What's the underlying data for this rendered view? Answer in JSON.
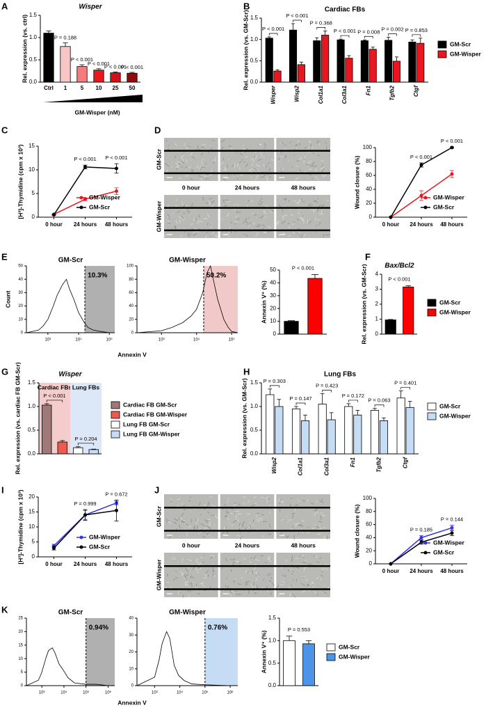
{
  "chart_data": [
    {
      "type": "bar",
      "panel": "A",
      "title": "Wisper",
      "ylabel": "Rel. expression (vs. ctrl)",
      "xlabel": "GM-Wisper (nM)",
      "categories": [
        "Ctrl",
        "1",
        "5",
        "10",
        "25",
        "50"
      ],
      "values": [
        1.1,
        0.8,
        0.35,
        0.27,
        0.21,
        0.2
      ],
      "errors": [
        0.05,
        0.08,
        0.04,
        0.03,
        0.02,
        0.02
      ],
      "colors": [
        "#000000",
        "#f9c6c6",
        "#f47c7c",
        "#e8171f",
        "#d0111a",
        "#8e0c0c"
      ],
      "annotations": [
        null,
        "P = 0.188",
        "P < 0.001",
        "P < 0.001",
        "P < 0.001",
        "P < 0.001"
      ],
      "ylim": [
        0,
        1.5
      ],
      "yticks": [
        {
          "value": 0,
          "label": "0.0"
        },
        {
          "value": 0.5,
          "label": "0.5"
        },
        {
          "value": 1,
          "label": "1.0"
        },
        {
          "value": 1.5,
          "label": "1.5"
        }
      ]
    },
    {
      "type": "grouped_bar",
      "panel": "B",
      "title": "Cardiac FBs",
      "ylabel": "Rel. expression (vs. GM-Scr)",
      "categories": [
        "Wisper",
        "Wisp2",
        "Col1a1",
        "Col3a1",
        "Fn1",
        "Tgfb2",
        "Ctgf"
      ],
      "series": [
        {
          "name": "GM-Scr",
          "color": "#000000",
          "values": [
            1.03,
            1.22,
            0.97,
            0.99,
            0.97,
            0.98,
            0.94
          ],
          "errors": [
            0.03,
            0.15,
            0.07,
            0.02,
            0.02,
            0.07,
            0.05
          ]
        },
        {
          "name": "GM-Wisper",
          "color": "#e8171f",
          "values": [
            0.26,
            0.41,
            1.1,
            0.56,
            0.77,
            0.49,
            0.91
          ],
          "errors": [
            0.03,
            0.06,
            0.1,
            0.06,
            0.05,
            0.1,
            0.12
          ]
        }
      ],
      "annotations": [
        "P < 0.001",
        "P < 0.001",
        "P = 0.368",
        "P < 0.001",
        "P = 0.008",
        "P = 0.002",
        "P = 0.853"
      ],
      "ylim": [
        0,
        1.5
      ],
      "yticks": [
        {
          "value": 0,
          "label": "0.0"
        },
        {
          "value": 0.5,
          "label": "0.5"
        },
        {
          "value": 1,
          "label": "1.0"
        },
        {
          "value": 1.5,
          "label": "1.5"
        }
      ],
      "legend": "right"
    },
    {
      "type": "line",
      "panel": "C",
      "ylabel": "[H³]-Thymidine (cpm x 10³)",
      "categories": [
        "0 hour",
        "24 hours",
        "48 hours"
      ],
      "series": [
        {
          "name": "GM-Wisper",
          "color": "#e8171f",
          "values": [
            0.6,
            3.8,
            5.5
          ],
          "errors": [
            0.1,
            0.3,
            0.7
          ]
        },
        {
          "name": "GM-Scr",
          "color": "#000000",
          "values": [
            0.5,
            10.6,
            10.3
          ],
          "errors": [
            0.1,
            0.4,
            1.0
          ]
        }
      ],
      "annotations": [
        null,
        "P < 0.001",
        "P < 0.001"
      ],
      "ylim": [
        0,
        15
      ],
      "yticks": [
        0,
        5,
        10,
        15
      ],
      "legend": "lower right"
    },
    {
      "type": "image",
      "panel": "D",
      "row_labels": [
        "GM-Scr",
        "GM-Wisper"
      ],
      "col_labels": [
        "0 hour",
        "24 hours",
        "48 hours"
      ]
    },
    {
      "type": "line",
      "ylabel": "Wound closure (%)",
      "categories": [
        "0 hour",
        "24 hours",
        "48 hours"
      ],
      "series": [
        {
          "name": "GM-Wisper",
          "color": "#e8171f",
          "values": [
            0,
            31,
            62
          ],
          "errors": [
            0,
            7,
            5
          ]
        },
        {
          "name": "GM-Scr",
          "color": "#000000",
          "values": [
            0,
            75,
            100
          ],
          "errors": [
            0,
            3,
            1
          ]
        }
      ],
      "annotations": [
        null,
        "P < 0.001",
        "P < 0.001"
      ],
      "ylim": [
        0,
        100
      ],
      "yticks": [
        0,
        20,
        40,
        60,
        80,
        100
      ],
      "legend": "lower right"
    },
    {
      "type": "flow",
      "panel": "E",
      "title": "GM-Scr",
      "ylabel": "Count",
      "xlabel": "Annexin V",
      "log_x": true,
      "x": [
        200,
        500,
        700,
        1000,
        1500,
        2000,
        3000,
        4000,
        5000,
        7000,
        10000,
        15000,
        20000,
        30000,
        50000,
        100000
      ],
      "values": [
        0,
        2,
        5,
        10,
        20,
        28,
        36,
        40,
        33,
        25,
        15,
        8,
        4,
        2,
        1,
        0
      ],
      "xlim": [
        200,
        150000
      ],
      "xticks": [
        {
          "value": 1000,
          "label": "10³"
        },
        {
          "value": 10000,
          "label": "10⁴"
        },
        {
          "value": 100000,
          "label": "10⁵"
        }
      ],
      "ylim": [
        0,
        50
      ],
      "yticks": [
        0,
        10,
        20,
        30,
        40,
        50
      ],
      "gate": [
        16000,
        150000
      ],
      "gate_color": "#b0b0b0",
      "gate_label": "10.3%"
    },
    {
      "type": "flow",
      "title": "GM-Wisper",
      "log_x": true,
      "x": [
        200,
        1000,
        2000,
        4000,
        7000,
        10000,
        15000,
        20000,
        25000,
        30000,
        40000,
        60000,
        80000,
        100000,
        150000
      ],
      "values": [
        0,
        3,
        8,
        15,
        25,
        35,
        60,
        90,
        100,
        80,
        50,
        20,
        8,
        2,
        0
      ],
      "xlim": [
        200,
        150000
      ],
      "xticks": [
        {
          "value": 1000,
          "label": "10³"
        },
        {
          "value": 10000,
          "label": "10⁴"
        },
        {
          "value": 100000,
          "label": "10⁵"
        }
      ],
      "ylim": [
        0,
        100
      ],
      "yticks": [
        0,
        20,
        40,
        60,
        80,
        100
      ],
      "gate": [
        16000,
        150000
      ],
      "gate_color": "#f2c9c9",
      "gate_label": "50.2%"
    },
    {
      "type": "bar",
      "ylabel": "Annexin V⁺ (%)",
      "values": [
        10,
        43.5
      ],
      "errors": [
        0.5,
        3
      ],
      "colors": [
        "#000000",
        "#ff0000"
      ],
      "annotation": "P < 0.001",
      "ylim": [
        0,
        50
      ],
      "yticks": [
        0,
        10,
        20,
        30,
        40,
        50
      ]
    },
    {
      "type": "bar",
      "panel": "F",
      "title": "Bax/Bcl2",
      "ylabel": "Rel. expression (vs. GM-Scr)",
      "series": [
        {
          "name": "GM-Scr",
          "color": "#000000",
          "values": [
            0.95
          ],
          "errors": [
            0.03
          ]
        },
        {
          "name": "GM-Wisper",
          "color": "#ff0000",
          "values": [
            3.15
          ],
          "errors": [
            0.08
          ]
        }
      ],
      "annotation": "P < 0.001",
      "ylim": [
        0,
        4
      ],
      "yticks": [
        0,
        1,
        2,
        3,
        4
      ],
      "legend": "right"
    },
    {
      "type": "bar",
      "panel": "G",
      "title": "Wisper",
      "ylabel": "Rel. expression (vs. cardiac FB GM-Scr)",
      "series": [
        {
          "name": "Cardiac FB GM-Scr",
          "color": "#a07878",
          "values": [
            1.03
          ],
          "errors": [
            0.03
          ]
        },
        {
          "name": "Cardiac FB GM-Wisper",
          "color": "#ee5a50",
          "values": [
            0.25
          ],
          "errors": [
            0.03
          ]
        },
        {
          "name": "Lung FB GM-Scr",
          "color": "#ffffff",
          "values": [
            0.13
          ],
          "errors": [
            0.02
          ]
        },
        {
          "name": "Lung FB GM-Wisper",
          "color": "#c6dcf5",
          "values": [
            0.09
          ],
          "errors": [
            0.01
          ]
        }
      ],
      "regions": [
        {
          "label": "Cardiac FBs",
          "color": "#f4cccc"
        },
        {
          "label": "Lung FBs",
          "color": "#dce8f7"
        }
      ],
      "annotations": [
        null,
        "P < 0.001",
        null,
        "P = 0.204"
      ],
      "ylim": [
        0,
        1.5
      ],
      "yticks": [
        {
          "value": 0,
          "label": "0.0"
        },
        {
          "value": 0.5,
          "label": "0.5"
        },
        {
          "value": 1,
          "label": "1.0"
        },
        {
          "value": 1.5,
          "label": "1.5"
        }
      ],
      "legend": "right"
    },
    {
      "type": "grouped_bar",
      "panel": "H",
      "title": "Lung FBs",
      "ylabel": "Rel. expression (vs. GM-Scr)",
      "categories": [
        "Wisp2",
        "Col1a1",
        "Col3a1",
        "Fn1",
        "Tgfb2",
        "Ctgf"
      ],
      "series": [
        {
          "name": "GM-Scr",
          "color": "#ffffff",
          "values": [
            1.25,
            0.95,
            1.05,
            1.0,
            0.92,
            1.18
          ],
          "errors": [
            0.12,
            0.05,
            0.22,
            0.06,
            0.04,
            0.15
          ]
        },
        {
          "name": "GM-Wisper",
          "color": "#c6dcf5",
          "values": [
            1.0,
            0.7,
            0.72,
            0.82,
            0.7,
            0.98
          ],
          "errors": [
            0.15,
            0.12,
            0.15,
            0.1,
            0.06,
            0.13
          ]
        }
      ],
      "annotations": [
        "P = 0.303",
        "P = 0.147",
        "P = 0.423",
        "P = 0.172",
        "P = 0.063",
        "P = 0.401"
      ],
      "ylim": [
        0,
        1.5
      ],
      "yticks": [
        {
          "value": 0,
          "label": "0.0"
        },
        {
          "value": 0.5,
          "label": "0.5"
        },
        {
          "value": 1,
          "label": "1.0"
        },
        {
          "value": 1.5,
          "label": "1.5"
        }
      ],
      "legend": "right"
    },
    {
      "type": "line",
      "panel": "I",
      "ylabel": "[H³]-Thymidine (cpm x 10³)",
      "categories": [
        "0 hour",
        "24 hours",
        "48 hours"
      ],
      "series": [
        {
          "name": "GM-Wisper",
          "color": "#3333e6",
          "values": [
            3.7,
            14,
            18
          ],
          "errors": [
            0.5,
            1.5,
            0.6
          ]
        },
        {
          "name": "GM-Scr",
          "color": "#000000",
          "values": [
            2.9,
            14,
            15.5
          ],
          "errors": [
            0.6,
            1.8,
            3.5
          ]
        }
      ],
      "annotations": [
        null,
        "P = 0.999",
        "P = 0.672"
      ],
      "ylim": [
        0,
        20
      ],
      "yticks": [
        0,
        5,
        10,
        15,
        20
      ],
      "legend": "lower right"
    },
    {
      "type": "image",
      "panel": "J",
      "row_labels": [
        "GM-Scr",
        "GM-Wisper"
      ],
      "col_labels": [
        "0 hour",
        "24 hours",
        "48 hours"
      ]
    },
    {
      "type": "line",
      "ylabel": "Wound closure (%)",
      "categories": [
        "0 hour",
        "24 hours",
        "48 hours"
      ],
      "series": [
        {
          "name": "GM-Wisper",
          "color": "#3333e6",
          "values": [
            0,
            40,
            55
          ],
          "errors": [
            0,
            3,
            4
          ]
        },
        {
          "name": "GM-Scr",
          "color": "#000000",
          "values": [
            0,
            33,
            47
          ],
          "errors": [
            0,
            3,
            4
          ]
        }
      ],
      "annotations": [
        null,
        "P = 0.185",
        "P = 0.144"
      ],
      "ylim": [
        0,
        100
      ],
      "yticks": [
        0,
        20,
        40,
        60,
        80,
        100
      ],
      "legend": "lower right"
    },
    {
      "type": "flow",
      "panel": "K",
      "title": "GM-Scr",
      "xlabel": "Annexin V",
      "log_x": true,
      "x": [
        200,
        700,
        1000,
        1500,
        2000,
        3000,
        4000,
        6000,
        9000,
        15000,
        30000,
        100000,
        300000,
        1000000
      ],
      "values": [
        0,
        2,
        5,
        10,
        13,
        14,
        12,
        8,
        6,
        3,
        1,
        0.5,
        0.5,
        0
      ],
      "xlim": [
        200,
        2000000
      ],
      "xticks": [
        {
          "value": 1000,
          "label": "10³"
        },
        {
          "value": 10000,
          "label": "10⁴"
        },
        {
          "value": 100000,
          "label": "10⁵"
        },
        {
          "value": 1000000,
          "label": "10⁶"
        }
      ],
      "ylim": [
        0,
        25
      ],
      "yticks": [
        0,
        5,
        10,
        15,
        20,
        25
      ],
      "gate": [
        100000,
        2000000
      ],
      "gate_color": "#b0b0b0",
      "gate_label": "0.94%"
    },
    {
      "type": "flow",
      "title": "GM-Wisper",
      "log_x": true,
      "x": [
        200,
        1000,
        1500,
        2000,
        3000,
        4000,
        6000,
        9000,
        15000,
        30000,
        100000,
        1000000
      ],
      "values": [
        0,
        5,
        15,
        25,
        32,
        28,
        12,
        6,
        3,
        1,
        0.5,
        0
      ],
      "xlim": [
        200,
        2000000
      ],
      "xticks": [
        {
          "value": 1000,
          "label": "10³"
        },
        {
          "value": 10000,
          "label": "10⁴"
        },
        {
          "value": 100000,
          "label": "10⁵"
        },
        {
          "value": 1000000,
          "label": "10⁶"
        }
      ],
      "ylim": [
        0,
        40
      ],
      "yticks": [
        0,
        10,
        20,
        30,
        40
      ],
      "gate": [
        100000,
        2000000
      ],
      "gate_color": "#c6dcf5",
      "gate_label": "0.76%"
    },
    {
      "type": "bar",
      "ylabel": "Annexin V⁺ (%)",
      "series": [
        {
          "name": "GM-Scr",
          "color": "#ffffff",
          "values": [
            1.0
          ],
          "errors": [
            0.1
          ]
        },
        {
          "name": "GM-Wisper",
          "color": "#4d94e8",
          "values": [
            0.93
          ],
          "errors": [
            0.07
          ]
        }
      ],
      "annotation": "P = 0.553",
      "ylim": [
        0,
        1.5
      ],
      "yticks": [
        {
          "value": 0,
          "label": "0.0"
        },
        {
          "value": 0.5,
          "label": "0.5"
        },
        {
          "value": 1,
          "label": "1.0"
        },
        {
          "value": 1.5,
          "label": "1.5"
        }
      ],
      "legend": "right"
    }
  ]
}
